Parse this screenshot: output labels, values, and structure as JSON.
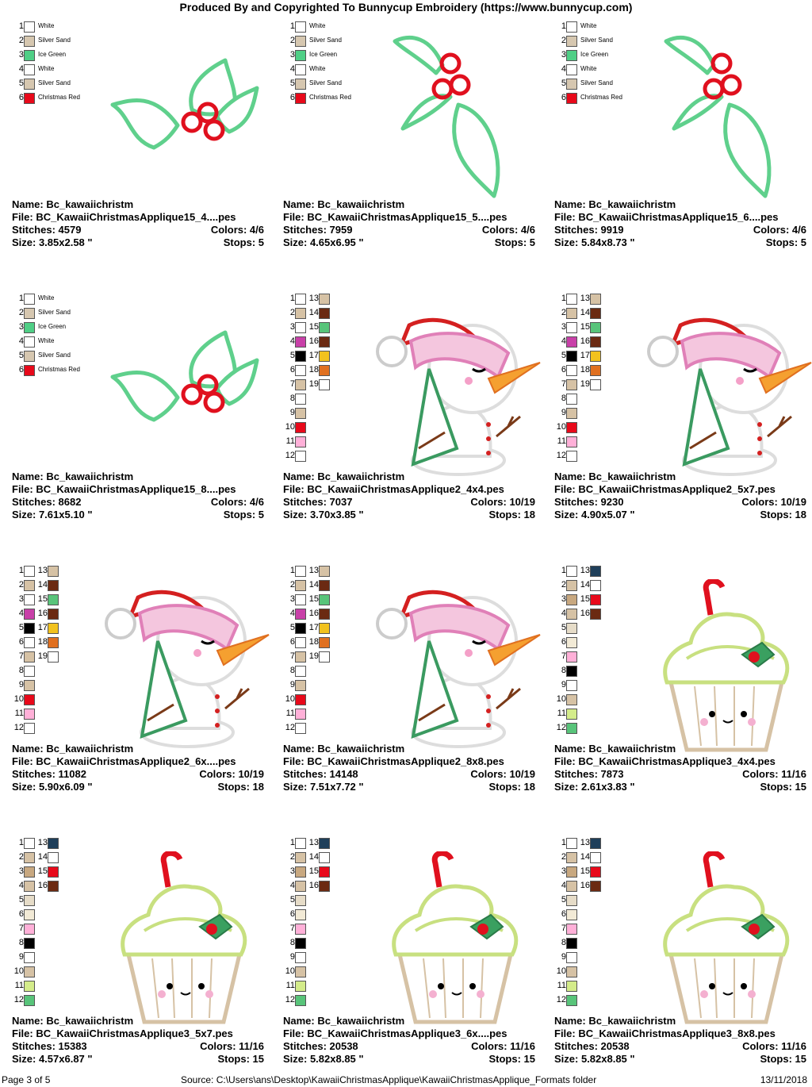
{
  "header": "Produced By and Copyrighted To Bunnycup Embroidery (https://www.bunnycup.com)",
  "holly_palette": [
    {
      "n": "1",
      "color": "#ffffff",
      "name": "White"
    },
    {
      "n": "2",
      "color": "#d6c7b0",
      "name": "Silver Sand"
    },
    {
      "n": "3",
      "color": "#4fcf86",
      "name": "Ice Green"
    },
    {
      "n": "4",
      "color": "#ffffff",
      "name": "White"
    },
    {
      "n": "5",
      "color": "#d6c7b0",
      "name": "Silver Sand"
    },
    {
      "n": "6",
      "color": "#e8091a",
      "name": "Christmas Red"
    }
  ],
  "snowman_palette": [
    {
      "n": "1",
      "color": "#ffffff",
      "n2": "13",
      "color2": "#d6c2a5"
    },
    {
      "n": "2",
      "color": "#d6c2a5",
      "n2": "14",
      "color2": "#6b2a12"
    },
    {
      "n": "3",
      "color": "#ffffff",
      "n2": "15",
      "color2": "#58c47a"
    },
    {
      "n": "4",
      "color": "#c840a8",
      "n2": "16",
      "color2": "#6b2a12"
    },
    {
      "n": "5",
      "color": "#000000",
      "n2": "17",
      "color2": "#f2c21e"
    },
    {
      "n": "6",
      "color": "#ffffff",
      "n2": "18",
      "color2": "#e07020"
    },
    {
      "n": "7",
      "color": "#d6c2a5",
      "n2": "19",
      "color2": "#ffffff"
    },
    {
      "n": "8",
      "color": "#ffffff"
    },
    {
      "n": "9",
      "color": "#d6c2a5"
    },
    {
      "n": "10",
      "color": "#e8091a"
    },
    {
      "n": "11",
      "color": "#ffb0d8"
    },
    {
      "n": "12",
      "color": "#ffffff"
    }
  ],
  "cupcake_palette": [
    {
      "n": "1",
      "color": "#ffffff",
      "n2": "13",
      "color2": "#1f3f5a"
    },
    {
      "n": "2",
      "color": "#d6c2a5",
      "n2": "14",
      "color2": "#ffffff"
    },
    {
      "n": "3",
      "color": "#c8a880",
      "n2": "15",
      "color2": "#e8091a"
    },
    {
      "n": "4",
      "color": "#d6c2a5",
      "n2": "16",
      "color2": "#6b2a12"
    },
    {
      "n": "5",
      "color": "#e6dcc8"
    },
    {
      "n": "6",
      "color": "#f2ead6"
    },
    {
      "n": "7",
      "color": "#ffb0d8"
    },
    {
      "n": "8",
      "color": "#000000"
    },
    {
      "n": "9",
      "color": "#ffffff"
    },
    {
      "n": "10",
      "color": "#d6c2a5"
    },
    {
      "n": "11",
      "color": "#d4ec8a"
    },
    {
      "n": "12",
      "color": "#58c47a"
    }
  ],
  "designs": [
    {
      "kind": "holly",
      "variant": "h1",
      "name": "Name: Bc_kawaiichristm",
      "file": "File: BC_KawaiiChristmasApplique15_4....pes",
      "stitches": "Stitches: 4579",
      "colors": "Colors: 4/6",
      "size": "Size: 3.85x2.58 \"",
      "stops": "Stops: 5"
    },
    {
      "kind": "holly",
      "variant": "v1",
      "name": "Name: Bc_kawaiichristm",
      "file": "File: BC_KawaiiChristmasApplique15_5....pes",
      "stitches": "Stitches: 7959",
      "colors": "Colors: 4/6",
      "size": "Size: 4.65x6.95 \"",
      "stops": "Stops: 5"
    },
    {
      "kind": "holly",
      "variant": "v2",
      "name": "Name: Bc_kawaiichristm",
      "file": "File: BC_KawaiiChristmasApplique15_6....pes",
      "stitches": "Stitches: 9919",
      "colors": "Colors: 4/6",
      "size": "Size: 5.84x8.73 \"",
      "stops": "Stops: 5"
    },
    {
      "kind": "holly",
      "variant": "h2",
      "name": "Name: Bc_kawaiichristm",
      "file": "File: BC_KawaiiChristmasApplique15_8....pes",
      "stitches": "Stitches: 8682",
      "colors": "Colors: 4/6",
      "size": "Size: 7.61x5.10 \"",
      "stops": "Stops: 5"
    },
    {
      "kind": "snowman",
      "variant": "s",
      "name": "Name: Bc_kawaiichristm",
      "file": "File: BC_KawaiiChristmasApplique2_4x4.pes",
      "stitches": "Stitches: 7037",
      "colors": "Colors: 10/19",
      "size": "Size: 3.70x3.85 \"",
      "stops": "Stops: 18"
    },
    {
      "kind": "snowman",
      "variant": "s",
      "name": "Name: Bc_kawaiichristm",
      "file": "File: BC_KawaiiChristmasApplique2_5x7.pes",
      "stitches": "Stitches: 9230",
      "colors": "Colors: 10/19",
      "size": "Size: 4.90x5.07 \"",
      "stops": "Stops: 18"
    },
    {
      "kind": "snowman",
      "variant": "s",
      "name": "Name: Bc_kawaiichristm",
      "file": "File: BC_KawaiiChristmasApplique2_6x....pes",
      "stitches": "Stitches: 11082",
      "colors": "Colors: 10/19",
      "size": "Size: 5.90x6.09 \"",
      "stops": "Stops: 18"
    },
    {
      "kind": "snowman",
      "variant": "s",
      "name": "Name: Bc_kawaiichristm",
      "file": "File: BC_KawaiiChristmasApplique2_8x8.pes",
      "stitches": "Stitches: 14148",
      "colors": "Colors: 10/19",
      "size": "Size: 7.51x7.72 \"",
      "stops": "Stops: 18"
    },
    {
      "kind": "cupcake",
      "variant": "c",
      "name": "Name: Bc_kawaiichristm",
      "file": "File: BC_KawaiiChristmasApplique3_4x4.pes",
      "stitches": "Stitches: 7873",
      "colors": "Colors: 11/16",
      "size": "Size: 2.61x3.83 \"",
      "stops": "Stops: 15"
    },
    {
      "kind": "cupcake",
      "variant": "c",
      "name": "Name: Bc_kawaiichristm",
      "file": "File: BC_KawaiiChristmasApplique3_5x7.pes",
      "stitches": "Stitches: 15383",
      "colors": "Colors: 11/16",
      "size": "Size: 4.57x6.87 \"",
      "stops": "Stops: 15"
    },
    {
      "kind": "cupcake",
      "variant": "c",
      "name": "Name: Bc_kawaiichristm",
      "file": "File: BC_KawaiiChristmasApplique3_6x....pes",
      "stitches": "Stitches: 20538",
      "colors": "Colors: 11/16",
      "size": "Size: 5.82x8.85 \"",
      "stops": "Stops: 15"
    },
    {
      "kind": "cupcake",
      "variant": "c",
      "name": "Name: Bc_kawaiichristm",
      "file": "File: BC_KawaiiChristmasApplique3_8x8.pes",
      "stitches": "Stitches: 20538",
      "colors": "Colors: 11/16",
      "size": "Size: 5.82x8.85 \"",
      "stops": "Stops: 15"
    }
  ],
  "footer": {
    "page": "Page 3 of 5",
    "source": "Source: C:\\Users\\ans\\Desktop\\KawaiiChristmasApplique\\KawaiiChristmasApplique_Formats folder",
    "date": "13/11/2018"
  }
}
